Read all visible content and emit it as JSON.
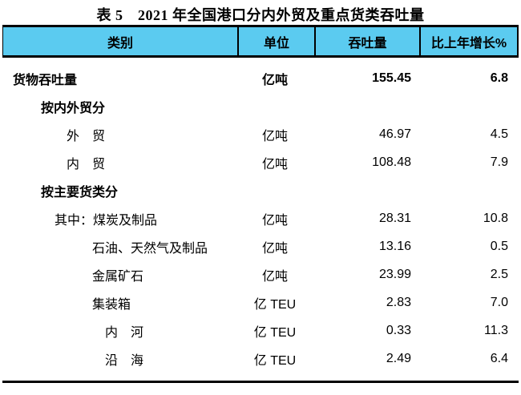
{
  "title": "表 5　2021 年全国港口分内外贸及重点货类吞吐量",
  "colors": {
    "header_background": "#5bcbf0",
    "rule_color": "#000000",
    "text_color": "#000000"
  },
  "table": {
    "columns": [
      "类别",
      "单位",
      "吞吐量",
      "比上年增长%"
    ],
    "rows": [
      {
        "label": "货物吞吐量",
        "unit": "亿吨",
        "value": "155.45",
        "growth": "6.8",
        "bold": true,
        "indent": 0
      },
      {
        "label": "按内外贸分",
        "unit": "",
        "value": "",
        "growth": "",
        "bold": true,
        "indent": 1
      },
      {
        "label": "外　贸",
        "unit": "亿吨",
        "value": "46.97",
        "growth": "4.5",
        "bold": false,
        "indent": 2
      },
      {
        "label": "内　贸",
        "unit": "亿吨",
        "value": "108.48",
        "growth": "7.9",
        "bold": false,
        "indent": 2
      },
      {
        "label": "按主要货类分",
        "unit": "",
        "value": "",
        "growth": "",
        "bold": true,
        "indent": 1
      },
      {
        "label": "其中：煤炭及制品",
        "unit": "亿吨",
        "value": "28.31",
        "growth": "10.8",
        "bold": false,
        "indent": 3
      },
      {
        "label": "石油、天然气及制品",
        "unit": "亿吨",
        "value": "13.16",
        "growth": "0.5",
        "bold": false,
        "indent": 4
      },
      {
        "label": "金属矿石",
        "unit": "亿吨",
        "value": "23.99",
        "growth": "2.5",
        "bold": false,
        "indent": 4
      },
      {
        "label": "集装箱",
        "unit": "亿 TEU",
        "value": "2.83",
        "growth": "7.0",
        "bold": false,
        "indent": 4
      },
      {
        "label": "内　河",
        "unit": "亿 TEU",
        "value": "0.33",
        "growth": "11.3",
        "bold": false,
        "indent": 5
      },
      {
        "label": "沿　海",
        "unit": "亿 TEU",
        "value": "2.49",
        "growth": "6.4",
        "bold": false,
        "indent": 5
      }
    ]
  }
}
